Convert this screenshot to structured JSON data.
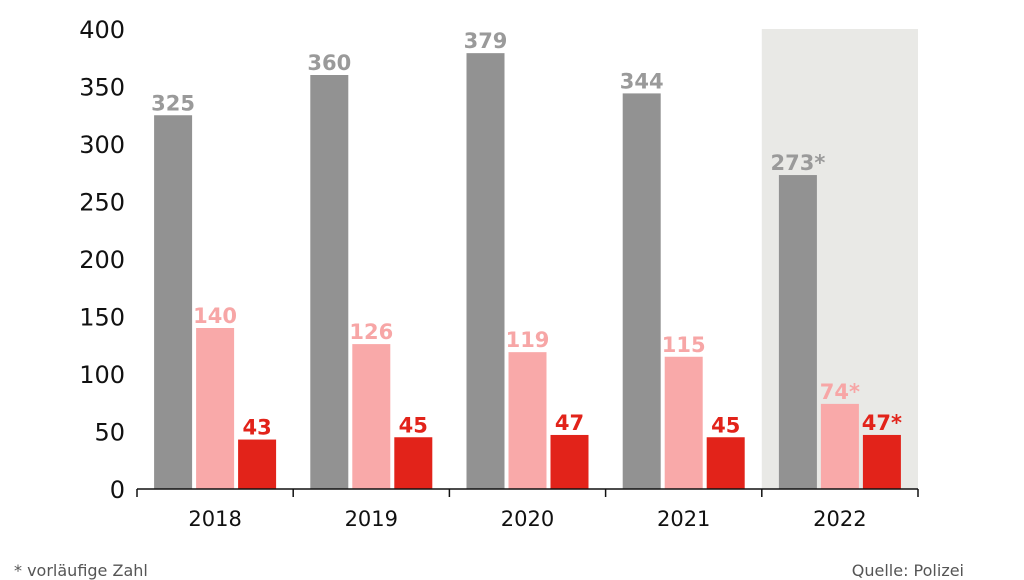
{
  "colors": {
    "series_1": "#929292",
    "series_2": "#f9a9a9",
    "series_3": "#e2231a",
    "label_1": "#9a9a9a",
    "label_2": "#f7a6a6",
    "label_3": "#e2231a",
    "highlight_band": "#e9e9e6",
    "axis": "#111111"
  },
  "chart_data": {
    "type": "bar",
    "categories": [
      "2018",
      "2019",
      "2020",
      "2021",
      "2022"
    ],
    "series": [
      {
        "values": [
          325,
          360,
          379,
          344,
          273
        ],
        "labels": [
          "325",
          "360",
          "379",
          "344",
          "273*"
        ]
      },
      {
        "values": [
          140,
          126,
          119,
          115,
          74
        ],
        "labels": [
          "140",
          "126",
          "119",
          "115",
          "74*"
        ]
      },
      {
        "values": [
          43,
          45,
          47,
          45,
          47
        ],
        "labels": [
          "43",
          "45",
          "47",
          "45",
          "47*"
        ]
      }
    ],
    "yticks": [
      "0",
      "50",
      "100",
      "150",
      "200",
      "250",
      "300",
      "350",
      "400"
    ],
    "ylim": [
      0,
      400
    ],
    "highlighted_category": "2022",
    "grid": false,
    "legend": "none"
  },
  "footer": {
    "note": "* vorläufige Zahl",
    "source": "Quelle: Polizei"
  }
}
